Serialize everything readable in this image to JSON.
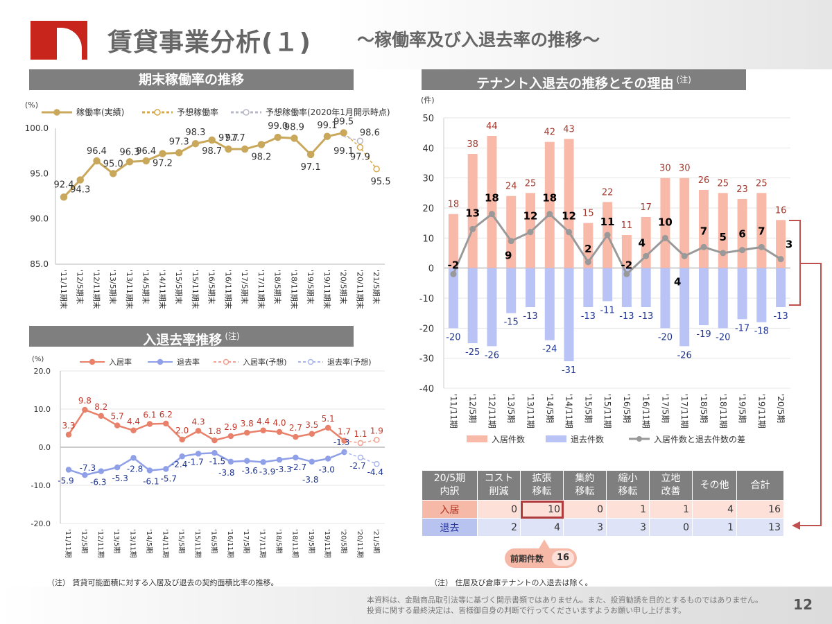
{
  "page": {
    "title": "賃貸事業分析(１)",
    "subtitle": "～稼働率及び入退去率の推移～",
    "page_number": "12",
    "disclaimer": [
      "本資料は、金融商品取引法等に基づく開示書類ではありません。また、投資勧誘を目的とするものではありません。",
      "投資に関する最終決定は、皆様御自身の判断で行ってくださいますようお願い申し上げます。"
    ],
    "colors": {
      "brand_red": "#c8261c",
      "gold": "#c9a85c",
      "header_gray": "#7f7f7f"
    }
  },
  "sections": {
    "occupancy_title": "期末稼働率の推移",
    "turnover_title": "入退去率推移",
    "turnover_note_mark": "(注)",
    "tenant_title": "テナント入退去の推移とその理由",
    "tenant_note_mark": "(注)"
  },
  "notes": {
    "turnover": "（注） 賃貸可能面積に対する入居及び退去の契約面積比率の推移。",
    "tenant": "（注） 住居及び倉庫テナントの入退去は除く。"
  },
  "chart_data": [
    {
      "id": "occupancy",
      "type": "line",
      "unit_label": "(%)",
      "categories": [
        "'11/11期末",
        "'12/5期末",
        "'12/11期末",
        "'13/5期末",
        "'13/11期末",
        "'14/5期末",
        "'14/11期末",
        "'15/5期末",
        "'15/11期末",
        "'16/5期末",
        "'16/11期末",
        "'17/5期末",
        "'17/11期末",
        "'18/5期末",
        "'18/11期末",
        "'19/5期末",
        "'19/11期末",
        "'20/5期末",
        "'20/11期末",
        "'21/5期末"
      ],
      "ylim": [
        85.0,
        100.0
      ],
      "yticks": [
        "85.0",
        "90.0",
        "95.0",
        "100.0"
      ],
      "series": [
        {
          "name": "稼働率(実績)",
          "values": [
            92.4,
            94.3,
            96.4,
            95.0,
            96.3,
            96.4,
            97.2,
            97.3,
            98.3,
            98.7,
            97.7,
            97.7,
            98.2,
            99.0,
            98.9,
            97.1,
            99.1,
            99.5,
            null,
            null
          ],
          "color": "#c9a85c"
        },
        {
          "name": "予想稼働率",
          "values": [
            null,
            null,
            null,
            null,
            null,
            null,
            null,
            null,
            null,
            null,
            null,
            null,
            null,
            null,
            null,
            null,
            null,
            99.5,
            97.9,
            95.5
          ],
          "color": "#d8a848"
        },
        {
          "name": "予想稼働率(2020年1月開示時点)",
          "values": [
            null,
            null,
            null,
            null,
            null,
            null,
            null,
            null,
            null,
            null,
            null,
            null,
            null,
            null,
            null,
            null,
            null,
            99.1,
            98.6,
            null
          ],
          "color": "#b8b8c8"
        }
      ],
      "labels": [
        "92.4",
        "94.3",
        "96.4",
        "95.0",
        "96.3",
        "96.4",
        "97.2",
        "97.3",
        "98.3",
        "98.7",
        "97.7",
        "97.7",
        "98.2",
        "99.0",
        "98.9",
        "97.1",
        "99.1",
        "99.5",
        "99.1",
        "98.6",
        "97.9",
        "95.5"
      ]
    },
    {
      "id": "turnover",
      "type": "line",
      "unit_label": "(%)",
      "categories": [
        "'11/11期",
        "'12/5期",
        "'12/11期",
        "'13/5期",
        "'13/11期",
        "'14/5期",
        "'14/11期",
        "'15/5期",
        "'15/11期",
        "'16/5期",
        "'16/11期",
        "'17/5期",
        "'17/11期",
        "'18/5期",
        "'18/11期",
        "'19/5期",
        "'19/11期",
        "'20/5期",
        "'20/11期",
        "'21/5期"
      ],
      "ylim": [
        -20.0,
        20.0
      ],
      "yticks": [
        "-20.0",
        "-10.0",
        "0.0",
        "10.0",
        "20.0"
      ],
      "series": [
        {
          "name": "入居率",
          "values": [
            3.3,
            9.8,
            8.2,
            5.7,
            4.4,
            6.1,
            6.2,
            2.0,
            4.3,
            1.8,
            2.9,
            3.8,
            4.4,
            4.0,
            2.7,
            3.5,
            5.1,
            1.7,
            null,
            null
          ],
          "color": "#e8806a"
        },
        {
          "name": "退去率",
          "values": [
            -5.9,
            -7.3,
            -6.3,
            -5.3,
            -2.8,
            -6.1,
            -5.7,
            -2.4,
            -1.7,
            -1.5,
            -3.8,
            -3.6,
            -3.9,
            -3.3,
            -2.7,
            -3.8,
            -3.0,
            -1.3,
            null,
            null
          ],
          "color": "#8fa0e8"
        },
        {
          "name": "入居率(予想)",
          "values": [
            null,
            null,
            null,
            null,
            null,
            null,
            null,
            null,
            null,
            null,
            null,
            null,
            null,
            null,
            null,
            null,
            null,
            1.7,
            1.1,
            1.9
          ],
          "color": "#f0a090"
        },
        {
          "name": "退去率(予想)",
          "values": [
            null,
            null,
            null,
            null,
            null,
            null,
            null,
            null,
            null,
            null,
            null,
            null,
            null,
            null,
            null,
            null,
            null,
            -1.3,
            -2.7,
            -4.4
          ],
          "color": "#a8b4ec"
        }
      ],
      "in_labels": [
        "3.3",
        "9.8",
        "8.2",
        "5.7",
        "4.4",
        "6.1",
        "6.2",
        "2.0",
        "4.3",
        "1.8",
        "2.9",
        "3.8",
        "4.4",
        "4.0",
        "2.7",
        "3.5",
        "5.1",
        "1.7",
        "1.1",
        "1.9"
      ],
      "out_labels": [
        "-5.9",
        "-7.3",
        "-6.3",
        "-5.3",
        "-2.8",
        "-6.1",
        "-5.7",
        "-2.4",
        "-1.7",
        "-1.5",
        "-3.8",
        "-3.6",
        "-3.9",
        "-3.3",
        "-2.7",
        "-3.8",
        "-3.0",
        "-1.3",
        "-2.7",
        "-4.4"
      ]
    },
    {
      "id": "tenants",
      "type": "bar",
      "unit_label": "(件)",
      "categories": [
        "'11/11期",
        "'12/5期",
        "'12/11期",
        "'13/5期",
        "'13/11期",
        "'14/5期",
        "'14/11期",
        "'15/5期",
        "'15/11期",
        "'16/5期",
        "'16/11期",
        "'17/5期",
        "'17/11期",
        "'18/5期",
        "'18/11期",
        "'19/5期",
        "'19/11期",
        "'20/5期"
      ],
      "ylim": [
        -40,
        50
      ],
      "yticks": [
        "-40",
        "-30",
        "-20",
        "-10",
        "0",
        "10",
        "20",
        "30",
        "40",
        "50"
      ],
      "series": [
        {
          "name": "入居件数",
          "values": [
            18,
            38,
            44,
            24,
            25,
            42,
            43,
            15,
            22,
            11,
            17,
            30,
            30,
            26,
            25,
            23,
            25,
            16
          ],
          "color": "#f8b9a9"
        },
        {
          "name": "退去件数",
          "values": [
            -20,
            -25,
            -26,
            -15,
            -13,
            -24,
            -31,
            -13,
            -11,
            -13,
            -13,
            -20,
            -26,
            -19,
            -20,
            -17,
            -18,
            -13
          ],
          "color": "#b9c3f6"
        },
        {
          "name": "入居件数と退去件数の差",
          "values": [
            -2,
            13,
            18,
            9,
            12,
            18,
            12,
            2,
            11,
            -2,
            4,
            10,
            4,
            7,
            5,
            6,
            7,
            3
          ],
          "color": "#999999"
        }
      ],
      "in_labels": [
        "18",
        "38",
        "44",
        "24",
        "25",
        "42",
        "43",
        "15",
        "22",
        "11",
        "17",
        "30",
        "30",
        "26",
        "25",
        "23",
        "25",
        "16"
      ],
      "out_labels": [
        "-20",
        "-25",
        "-26",
        "-15",
        "-13",
        "-24",
        "-31",
        "-13",
        "-11",
        "-13",
        "-13",
        "-20",
        "-26",
        "-19",
        "-20",
        "-17",
        "-18",
        "-13"
      ],
      "diff_labels": [
        "-2",
        "13",
        "18",
        "9",
        "12",
        "18",
        "12",
        "2",
        "11",
        "-2",
        "4",
        "10",
        "4",
        "7",
        "5",
        "6",
        "7",
        "3"
      ]
    }
  ],
  "breakdown": {
    "headers": [
      "20/5期\n内訳",
      "コスト\n削減",
      "拡張\n移転",
      "集約\n移転",
      "縮小\n移転",
      "立地\n改善",
      "その他",
      "合計"
    ],
    "rows": [
      {
        "label": "入居",
        "values": [
          "0",
          "10",
          "0",
          "1",
          "1",
          "4",
          "16"
        ]
      },
      {
        "label": "退去",
        "values": [
          "2",
          "4",
          "3",
          "3",
          "0",
          "1",
          "13"
        ]
      }
    ],
    "prev_label": "前期件数",
    "prev_value": "16"
  }
}
